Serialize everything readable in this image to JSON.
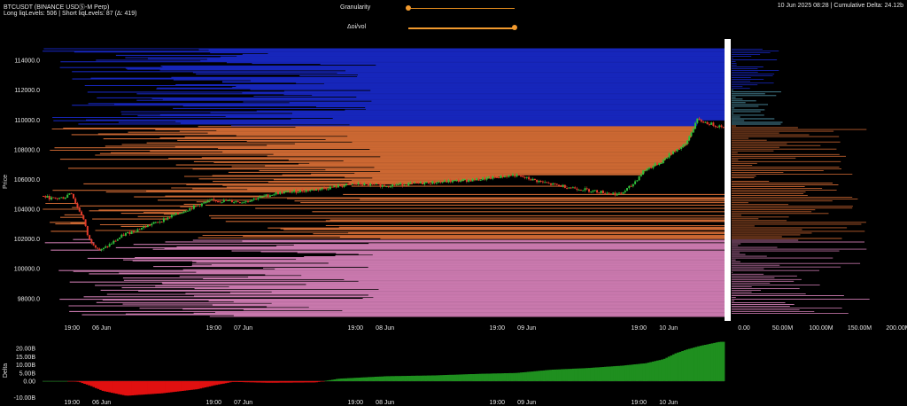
{
  "header": {
    "symbol": "BTCUSDT (BINANCE USDⓈ-M Perp)",
    "levels": "Long liqLevels: 506 | Short liqLevels: 87 (Δ: 419)",
    "datetime_delta": "10 Jun 2025 08:28 | Cumulative Delta: 24.12b"
  },
  "controls": {
    "granularity_label": "Granularity",
    "granularity_value": 0.0,
    "oi_vol_label": "Δoi/vol",
    "oi_vol_value": 1.0
  },
  "colors": {
    "short_liq": "#1a2bd6",
    "short_liq_light": "#5fb0c8",
    "long_liq_orange": "#e8763a",
    "long_liq_pink": "#e58ac6",
    "candle_up": "#2fbf3a",
    "candle_down": "#e23a2a",
    "delta_pos": "#1f8f1f",
    "delta_neg": "#e01010",
    "separator": "#ffffff"
  },
  "chart_data": [
    {
      "type": "line",
      "title": "",
      "ylabel": "Price",
      "ylim": [
        96500,
        115200
      ],
      "yticks": [
        98000,
        100000,
        102000,
        104000,
        106000,
        108000,
        110000,
        112000,
        114000
      ],
      "ytick_labels": [
        "98000.0",
        "100000.0",
        "102000.0",
        "104000.0",
        "106000.0",
        "108000.0",
        "110000.0",
        "112000.0",
        "114000.0"
      ],
      "x_axis": "time",
      "xlim": [
        "2025-06-05 14:00",
        "2025-06-10 09:30"
      ],
      "xticks": [
        "2025-06-05 19:00",
        "2025-06-06 00:00",
        "2025-06-06 19:00",
        "2025-06-07 00:00",
        "2025-06-07 19:00",
        "2025-06-08 00:00",
        "2025-06-08 19:00",
        "2025-06-09 00:00",
        "2025-06-09 19:00",
        "2025-06-10 00:00"
      ],
      "xtick_labels": [
        "19:00",
        "06 Jun",
        "19:00",
        "07 Jun",
        "19:00",
        "08 Jun",
        "19:00",
        "09 Jun",
        "19:00",
        "10 Jun"
      ],
      "price_series": {
        "name": "",
        "x": [
          "2025-06-05 14:00",
          "2025-06-05 16:00",
          "2025-06-05 18:00",
          "2025-06-05 19:00",
          "2025-06-05 20:00",
          "2025-06-05 21:00",
          "2025-06-05 22:00",
          "2025-06-06 00:00",
          "2025-06-06 04:00",
          "2025-06-06 10:00",
          "2025-06-06 16:00",
          "2025-06-06 19:00",
          "2025-06-07 00:00",
          "2025-06-07 06:00",
          "2025-06-07 12:00",
          "2025-06-07 19:00",
          "2025-06-08 00:00",
          "2025-06-08 08:00",
          "2025-06-08 16:00",
          "2025-06-08 22:00",
          "2025-06-09 04:00",
          "2025-06-09 12:00",
          "2025-06-09 16:00",
          "2025-06-09 18:00",
          "2025-06-09 20:00",
          "2025-06-09 23:00",
          "2025-06-10 01:00",
          "2025-06-10 03:00",
          "2025-06-10 05:00",
          "2025-06-10 08:28"
        ],
        "y": [
          104900,
          104700,
          104800,
          105200,
          104200,
          103500,
          102000,
          101200,
          102300,
          103200,
          104200,
          104600,
          104500,
          105100,
          105300,
          105700,
          105600,
          105800,
          106000,
          106300,
          105700,
          105200,
          105000,
          105600,
          106600,
          107200,
          107900,
          108300,
          110000,
          109600
        ]
      },
      "long_liq_levels": 506,
      "short_liq_levels": 87
    },
    {
      "type": "bar",
      "title": "",
      "xlabel": "",
      "ylabel": "",
      "xlim": [
        0,
        200000000
      ],
      "xticks": [
        0,
        50000000,
        100000000,
        150000000,
        200000000
      ],
      "xtick_labels": [
        "0.00",
        "50.00M",
        "100.00M",
        "150.00M",
        "200.00M"
      ]
    },
    {
      "type": "area",
      "title": "",
      "ylabel": "Delta",
      "ylim": [
        -12000000000,
        25000000000
      ],
      "yticks": [
        -10000000000,
        0,
        5000000000,
        10000000000,
        15000000000,
        20000000000
      ],
      "ytick_labels": [
        "-10.00B",
        "0.00",
        "5.00B",
        "10.00B",
        "15.00B",
        "20.00B"
      ],
      "xtick_labels": [
        "19:00",
        "06 Jun",
        "19:00",
        "07 Jun",
        "19:00",
        "08 Jun",
        "19:00",
        "09 Jun",
        "19:00",
        "10 Jun"
      ],
      "delta_series": {
        "name": "",
        "x": [
          "2025-06-05 14:00",
          "2025-06-05 18:00",
          "2025-06-05 20:00",
          "2025-06-05 22:00",
          "2025-06-06 00:00",
          "2025-06-06 04:00",
          "2025-06-06 10:00",
          "2025-06-06 16:00",
          "2025-06-06 19:00",
          "2025-06-06 22:00",
          "2025-06-07 04:00",
          "2025-06-07 12:00",
          "2025-06-07 16:00",
          "2025-06-08 00:00",
          "2025-06-08 08:00",
          "2025-06-08 16:00",
          "2025-06-08 22:00",
          "2025-06-09 04:00",
          "2025-06-09 10:00",
          "2025-06-09 16:00",
          "2025-06-09 20:00",
          "2025-06-09 23:00",
          "2025-06-10 01:00",
          "2025-06-10 03:00",
          "2025-06-10 05:00",
          "2025-06-10 08:28"
        ],
        "y": [
          0,
          0,
          -500000000,
          -3000000000,
          -6000000000,
          -9000000000,
          -7500000000,
          -5000000000,
          -2500000000,
          -500000000,
          -1000000000,
          -800000000,
          1500000000,
          3000000000,
          3500000000,
          4500000000,
          5000000000,
          7000000000,
          8000000000,
          9500000000,
          11000000000,
          13500000000,
          17000000000,
          19500000000,
          21500000000,
          24120000000
        ]
      }
    }
  ]
}
